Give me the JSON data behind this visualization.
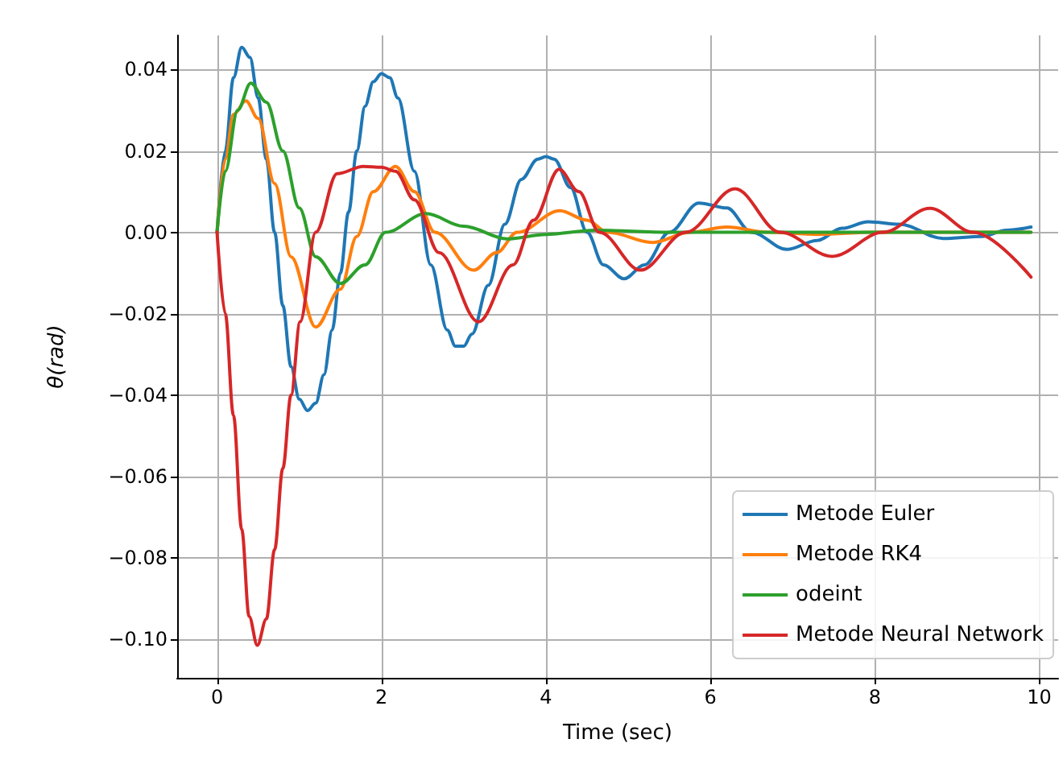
{
  "chart_data": {
    "type": "line",
    "xlabel": "Time (sec)",
    "ylabel": "θ(rad)",
    "xlim": [
      -0.485,
      10.23
    ],
    "xticks": [
      0,
      2,
      4,
      6,
      8,
      10
    ],
    "ylim": [
      -0.1095,
      0.0484
    ],
    "yticks": [
      {
        "value": -0.1,
        "label": "−0.10"
      },
      {
        "value": -0.08,
        "label": "−0.08"
      },
      {
        "value": -0.06,
        "label": "−0.06"
      },
      {
        "value": -0.04,
        "label": "−0.04"
      },
      {
        "value": -0.02,
        "label": "−0.02"
      },
      {
        "value": 0,
        "label": "0.00"
      },
      {
        "value": 0.02,
        "label": "0.02"
      },
      {
        "value": 0.04,
        "label": "0.04"
      }
    ],
    "grid": true,
    "legend": "bottom right",
    "marker": "none",
    "line_style": "solid",
    "series": [
      {
        "name": "Metode Euler",
        "color": "#1f77b4",
        "x": [
          0,
          0.1,
          0.2,
          0.3,
          0.4,
          0.5,
          0.6,
          0.7,
          0.8,
          0.9,
          1.0,
          1.1,
          1.2,
          1.3,
          1.4,
          1.5,
          1.6,
          1.7,
          1.8,
          1.9,
          2.0,
          2.1,
          2.2,
          2.4,
          2.6,
          2.8,
          2.9,
          3.0,
          3.1,
          3.3,
          3.5,
          3.7,
          3.9,
          4.0,
          4.1,
          4.3,
          4.5,
          4.7,
          4.95,
          5.2,
          5.5,
          5.86,
          6.2,
          6.5,
          6.93,
          7.3,
          7.6,
          7.92,
          8.3,
          8.83,
          9.3,
          9.6,
          9.9
        ],
        "values": [
          0,
          0.02,
          0.038,
          0.0455,
          0.043,
          0.033,
          0.018,
          0.0,
          -0.018,
          -0.033,
          -0.041,
          -0.0438,
          -0.042,
          -0.035,
          -0.024,
          -0.01,
          0.005,
          0.02,
          0.031,
          0.037,
          0.039,
          0.038,
          0.033,
          0.015,
          -0.008,
          -0.024,
          -0.028,
          -0.028,
          -0.025,
          -0.013,
          0.002,
          0.013,
          0.018,
          0.0186,
          0.018,
          0.011,
          0.0,
          -0.008,
          -0.0114,
          -0.008,
          0.0,
          0.0072,
          0.006,
          0.0,
          -0.0042,
          -0.002,
          0.001,
          0.0026,
          0.002,
          -0.0015,
          -0.001,
          0.0005,
          0.0013
        ]
      },
      {
        "name": "Metode RK4",
        "color": "#ff7f0e",
        "x": [
          0,
          0.1,
          0.2,
          0.35,
          0.5,
          0.7,
          0.9,
          1.2,
          1.5,
          1.7,
          1.9,
          2.17,
          2.4,
          2.65,
          3.12,
          3.4,
          3.65,
          4.17,
          4.5,
          4.75,
          5.3,
          5.75,
          6.2,
          6.7,
          7.3,
          8,
          9,
          9.9
        ],
        "values": [
          0,
          0.018,
          0.029,
          0.0323,
          0.028,
          0.012,
          -0.006,
          -0.0233,
          -0.014,
          -0.001,
          0.01,
          0.0162,
          0.01,
          0.0,
          -0.0093,
          -0.005,
          0.0,
          0.0053,
          0.003,
          0.0,
          -0.0025,
          0.0,
          0.0013,
          0.0,
          -0.0005,
          0,
          0,
          0
        ]
      },
      {
        "name": "odeint",
        "color": "#2ca02c",
        "x": [
          0,
          0.1,
          0.25,
          0.41,
          0.6,
          0.8,
          1.0,
          1.2,
          1.5,
          1.8,
          2.05,
          2.54,
          3.0,
          3.53,
          4.0,
          4.6,
          5.5,
          7,
          8.5,
          9.9
        ],
        "values": [
          0,
          0.015,
          0.03,
          0.0367,
          0.032,
          0.02,
          0.006,
          -0.006,
          -0.0126,
          -0.008,
          0.0,
          0.0046,
          0.0015,
          -0.0016,
          -0.0005,
          0.0005,
          0,
          0,
          0,
          0
        ]
      },
      {
        "name": "Metode Neural Network",
        "color": "#d62728",
        "x": [
          0,
          0.1,
          0.2,
          0.3,
          0.39,
          0.49,
          0.6,
          0.7,
          0.8,
          0.9,
          1.01,
          1.2,
          1.46,
          1.78,
          2.0,
          2.17,
          2.4,
          2.7,
          3.18,
          3.6,
          3.85,
          4.16,
          4.4,
          4.65,
          5.15,
          5.7,
          6.3,
          6.85,
          7.48,
          8.1,
          8.67,
          9.2,
          9.9
        ],
        "values": [
          0,
          -0.02,
          -0.045,
          -0.073,
          -0.0944,
          -0.1015,
          -0.095,
          -0.078,
          -0.058,
          -0.04,
          -0.022,
          0.0,
          0.0144,
          0.0162,
          0.016,
          0.015,
          0.008,
          -0.005,
          -0.022,
          -0.008,
          0.003,
          0.0155,
          0.01,
          0.0,
          -0.0093,
          0.0,
          0.0107,
          0.0,
          -0.0059,
          0.0,
          0.0059,
          0.0,
          -0.011
        ]
      }
    ]
  }
}
